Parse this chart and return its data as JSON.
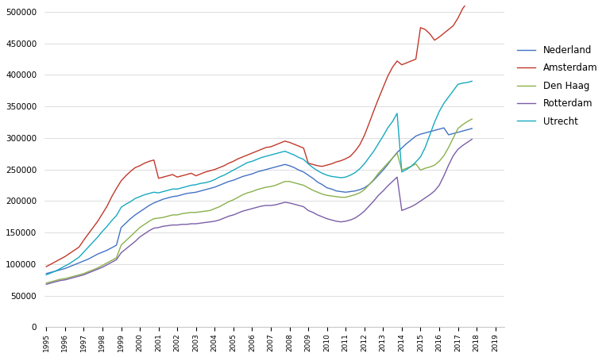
{
  "background_color": "#ffffff",
  "legend_labels": [
    "Nederland",
    "Amsterdam",
    "Den Haag",
    "Rotterdam",
    "Utrecht"
  ],
  "line_colors": {
    "Nederland": "#4472c4",
    "Amsterdam": "#c0392b",
    "Den Haag": "#8ab04b",
    "Rotterdam": "#7b5ea7",
    "Utrecht": "#17a9c0"
  },
  "ylim": [
    0,
    510000
  ],
  "yticks": [
    0,
    50000,
    100000,
    150000,
    200000,
    250000,
    300000,
    350000,
    400000,
    450000,
    500000
  ],
  "x_start_year": 1995,
  "quarters_per_year": 4,
  "series": {
    "Nederland": [
      85000,
      87000,
      89000,
      91000,
      93000,
      96000,
      99000,
      102000,
      105000,
      108000,
      112000,
      116000,
      119000,
      122000,
      126000,
      130000,
      158000,
      165000,
      172000,
      178000,
      183000,
      188000,
      193000,
      197000,
      200000,
      203000,
      205000,
      207000,
      208000,
      210000,
      212000,
      213000,
      214000,
      216000,
      218000,
      220000,
      222000,
      225000,
      228000,
      231000,
      233000,
      236000,
      239000,
      241000,
      243000,
      246000,
      248000,
      250000,
      252000,
      254000,
      256000,
      258000,
      256000,
      253000,
      249000,
      246000,
      241000,
      236000,
      230000,
      226000,
      221000,
      219000,
      216000,
      215000,
      214000,
      215000,
      216000,
      218000,
      221000,
      226000,
      233000,
      241000,
      249000,
      258000,
      268000,
      277000,
      284000,
      291000,
      297000,
      303000,
      306000,
      308000,
      310000,
      312000,
      314000,
      316000,
      305000,
      307000,
      309000,
      311000,
      313000,
      315000
    ],
    "Amsterdam": [
      96000,
      100000,
      104000,
      108000,
      112000,
      117000,
      122000,
      127000,
      138000,
      148000,
      158000,
      168000,
      180000,
      192000,
      207000,
      220000,
      232000,
      240000,
      247000,
      253000,
      256000,
      260000,
      263000,
      265000,
      236000,
      238000,
      240000,
      242000,
      238000,
      240000,
      242000,
      244000,
      240000,
      243000,
      246000,
      248000,
      250000,
      253000,
      256000,
      260000,
      263000,
      267000,
      270000,
      273000,
      276000,
      279000,
      282000,
      285000,
      286000,
      289000,
      292000,
      295000,
      293000,
      290000,
      287000,
      284000,
      260000,
      258000,
      256000,
      255000,
      257000,
      259000,
      262000,
      264000,
      267000,
      271000,
      279000,
      289000,
      304000,
      323000,
      343000,
      362000,
      380000,
      398000,
      412000,
      422000,
      416000,
      419000,
      422000,
      425000,
      475000,
      472000,
      465000,
      455000,
      460000,
      466000,
      472000,
      478000,
      490000,
      505000,
      515000,
      515000
    ],
    "Den Haag": [
      70000,
      72000,
      74000,
      76000,
      77000,
      79000,
      81000,
      83000,
      85000,
      88000,
      91000,
      94000,
      98000,
      102000,
      106000,
      110000,
      130000,
      137000,
      144000,
      151000,
      158000,
      163000,
      168000,
      172000,
      173000,
      174000,
      176000,
      178000,
      178000,
      180000,
      181000,
      182000,
      182000,
      183000,
      184000,
      185000,
      188000,
      191000,
      195000,
      199000,
      202000,
      206000,
      210000,
      213000,
      215000,
      218000,
      220000,
      222000,
      223000,
      225000,
      228000,
      231000,
      231000,
      229000,
      227000,
      225000,
      221000,
      217000,
      214000,
      211000,
      209000,
      208000,
      207000,
      206000,
      206000,
      208000,
      210000,
      213000,
      218000,
      226000,
      234000,
      244000,
      252000,
      260000,
      268000,
      276000,
      249000,
      252000,
      255000,
      259000,
      249000,
      252000,
      254000,
      257000,
      263000,
      272000,
      285000,
      300000,
      315000,
      321000,
      326000,
      330000
    ],
    "Rotterdam": [
      68000,
      70000,
      72000,
      74000,
      75000,
      77000,
      79000,
      81000,
      83000,
      86000,
      89000,
      92000,
      95000,
      99000,
      103000,
      107000,
      118000,
      124000,
      130000,
      136000,
      143000,
      148000,
      153000,
      157000,
      158000,
      160000,
      161000,
      162000,
      162000,
      163000,
      163000,
      164000,
      164000,
      165000,
      166000,
      167000,
      168000,
      170000,
      173000,
      176000,
      178000,
      181000,
      184000,
      186000,
      188000,
      190000,
      192000,
      193000,
      193000,
      194000,
      196000,
      198000,
      197000,
      195000,
      193000,
      191000,
      185000,
      182000,
      178000,
      175000,
      172000,
      170000,
      168000,
      167000,
      168000,
      170000,
      173000,
      178000,
      184000,
      192000,
      200000,
      209000,
      216000,
      224000,
      231000,
      238000,
      185000,
      188000,
      191000,
      195000,
      200000,
      205000,
      210000,
      216000,
      225000,
      240000,
      257000,
      272000,
      282000,
      288000,
      293000,
      298000
    ],
    "Utrecht": [
      83000,
      86000,
      89000,
      93000,
      97000,
      101000,
      106000,
      111000,
      119000,
      127000,
      135000,
      143000,
      152000,
      160000,
      169000,
      177000,
      190000,
      195000,
      199000,
      204000,
      207000,
      210000,
      212000,
      214000,
      213000,
      215000,
      217000,
      219000,
      219000,
      221000,
      223000,
      225000,
      226000,
      228000,
      229000,
      231000,
      234000,
      238000,
      241000,
      245000,
      249000,
      253000,
      257000,
      261000,
      263000,
      266000,
      269000,
      271000,
      273000,
      275000,
      277000,
      279000,
      276000,
      273000,
      269000,
      266000,
      259000,
      253000,
      248000,
      244000,
      241000,
      239000,
      238000,
      237000,
      238000,
      241000,
      245000,
      251000,
      259000,
      269000,
      279000,
      291000,
      303000,
      316000,
      326000,
      339000,
      246000,
      250000,
      255000,
      262000,
      270000,
      285000,
      305000,
      325000,
      342000,
      355000,
      365000,
      375000,
      385000,
      387000,
      388000,
      390000
    ]
  }
}
